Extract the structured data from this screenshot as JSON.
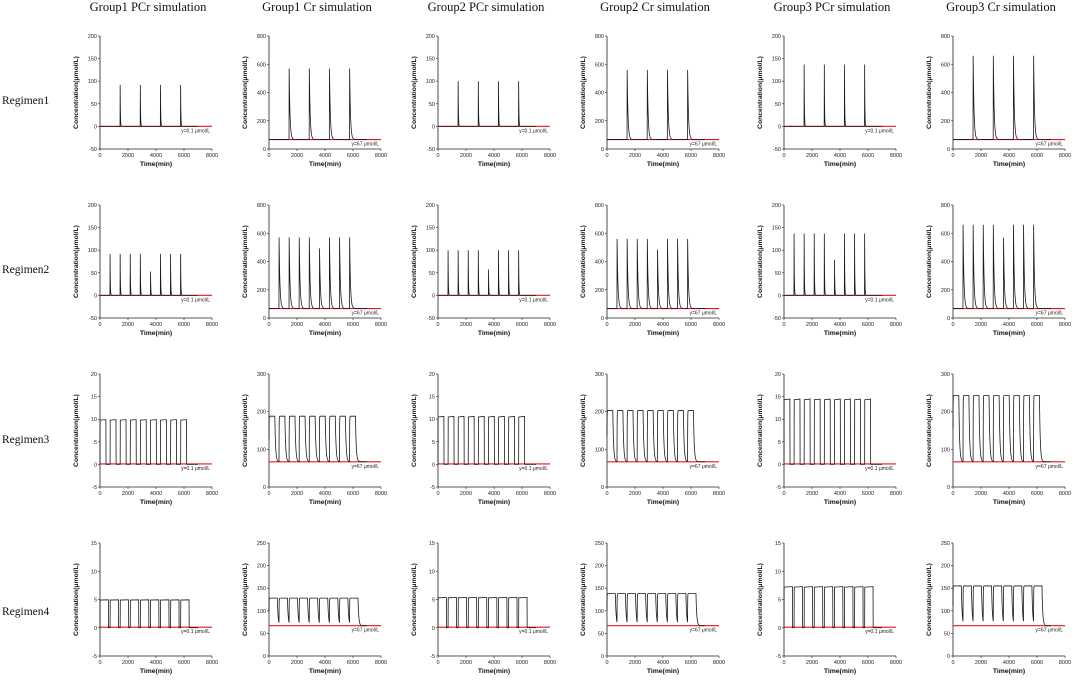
{
  "column_titles": [
    "Group1 PCr simulation",
    "Group1 Cr simulation",
    "Group2 PCr simulation",
    "Group2 Cr simulation",
    "Group3 PCr simulation",
    "Group3 Cr simulation"
  ],
  "row_labels": [
    "Regimen1",
    "Regimen2",
    "Regimen3",
    "Regimen4"
  ],
  "x_axis": {
    "label": "Time(min)",
    "ticks": [
      0,
      2000,
      4000,
      6000,
      8000
    ],
    "tick_labels": [
      "0",
      "2000",
      "4000",
      "6000",
      "8000"
    ],
    "xlim": [
      0,
      8000
    ]
  },
  "y_axis_label": "Concentration(μmol/L)",
  "reference_labels": {
    "PCr": "y=0.1 μmol/L",
    "Cr": "y=67 μmol/L"
  },
  "colors": {
    "curve": "#1a1a1a",
    "reference": "#e8141b"
  },
  "chart_data": [
    {
      "type": "line",
      "row": "Regimen1",
      "column": "Group1 PCr simulation",
      "ylim": [
        -50,
        200
      ],
      "yticks": [
        -50,
        0,
        50,
        100,
        150,
        200
      ],
      "reference": 0.1,
      "baseline": 0,
      "peak": 92,
      "pattern": "spike",
      "dose_times": [
        1440,
        2880,
        4320,
        5760
      ]
    },
    {
      "type": "line",
      "row": "Regimen1",
      "column": "Group1 Cr simulation",
      "ylim": [
        0,
        800
      ],
      "yticks": [
        0,
        200,
        400,
        600,
        800
      ],
      "reference": 67,
      "baseline": 67,
      "peak": 570,
      "pattern": "spike",
      "dose_times": [
        1440,
        2880,
        4320,
        5760
      ]
    },
    {
      "type": "line",
      "row": "Regimen1",
      "column": "Group2 PCr simulation",
      "ylim": [
        -50,
        200
      ],
      "yticks": [
        -50,
        0,
        50,
        100,
        150,
        200
      ],
      "reference": 0.1,
      "baseline": 0,
      "peak": 100,
      "pattern": "spike",
      "dose_times": [
        1440,
        2880,
        4320,
        5760
      ]
    },
    {
      "type": "line",
      "row": "Regimen1",
      "column": "Group2 Cr simulation",
      "ylim": [
        0,
        800
      ],
      "yticks": [
        0,
        200,
        400,
        600,
        800
      ],
      "reference": 67,
      "baseline": 67,
      "peak": 560,
      "pattern": "spike",
      "dose_times": [
        1440,
        2880,
        4320,
        5760
      ]
    },
    {
      "type": "line",
      "row": "Regimen1",
      "column": "Group3 PCr simulation",
      "ylim": [
        -50,
        200
      ],
      "yticks": [
        -50,
        0,
        50,
        100,
        150,
        200
      ],
      "reference": 0.1,
      "baseline": 0,
      "peak": 137,
      "pattern": "spike",
      "dose_times": [
        1440,
        2880,
        4320,
        5760
      ]
    },
    {
      "type": "line",
      "row": "Regimen1",
      "column": "Group3 Cr simulation",
      "ylim": [
        0,
        800
      ],
      "yticks": [
        0,
        200,
        400,
        600,
        800
      ],
      "reference": 67,
      "baseline": 67,
      "peak": 660,
      "pattern": "spike",
      "dose_times": [
        1440,
        2880,
        4320,
        5760
      ]
    },
    {
      "type": "line",
      "row": "Regimen2",
      "column": "Group1 PCr simulation",
      "ylim": [
        -50,
        200
      ],
      "yticks": [
        -50,
        0,
        50,
        100,
        150,
        200
      ],
      "reference": 0.1,
      "baseline": 0,
      "peak": 92,
      "pattern": "spike",
      "dose_times": [
        720,
        1440,
        2160,
        2880,
        3600,
        4320,
        5040,
        5760
      ]
    },
    {
      "type": "line",
      "row": "Regimen2",
      "column": "Group1 Cr simulation",
      "ylim": [
        0,
        800
      ],
      "yticks": [
        0,
        200,
        400,
        600,
        800
      ],
      "reference": 67,
      "baseline": 67,
      "peak": 570,
      "pattern": "spike",
      "dose_times": [
        720,
        1440,
        2160,
        2880,
        3600,
        4320,
        5040,
        5760
      ]
    },
    {
      "type": "line",
      "row": "Regimen2",
      "column": "Group2 PCr simulation",
      "ylim": [
        -50,
        200
      ],
      "yticks": [
        -50,
        0,
        50,
        100,
        150,
        200
      ],
      "reference": 0.1,
      "baseline": 0,
      "peak": 100,
      "pattern": "spike",
      "dose_times": [
        720,
        1440,
        2160,
        2880,
        3600,
        4320,
        5040,
        5760
      ]
    },
    {
      "type": "line",
      "row": "Regimen2",
      "column": "Group2 Cr simulation",
      "ylim": [
        0,
        800
      ],
      "yticks": [
        0,
        200,
        400,
        600,
        800
      ],
      "reference": 67,
      "baseline": 67,
      "peak": 560,
      "pattern": "spike",
      "dose_times": [
        720,
        1440,
        2160,
        2880,
        3600,
        4320,
        5040,
        5760
      ]
    },
    {
      "type": "line",
      "row": "Regimen2",
      "column": "Group3 PCr simulation",
      "ylim": [
        -50,
        200
      ],
      "yticks": [
        -50,
        0,
        50,
        100,
        150,
        200
      ],
      "reference": 0.1,
      "baseline": 0,
      "peak": 137,
      "pattern": "spike",
      "dose_times": [
        720,
        1440,
        2160,
        2880,
        3600,
        4320,
        5040,
        5760
      ]
    },
    {
      "type": "line",
      "row": "Regimen2",
      "column": "Group3 Cr simulation",
      "ylim": [
        0,
        800
      ],
      "yticks": [
        0,
        200,
        400,
        600,
        800
      ],
      "reference": 67,
      "baseline": 67,
      "peak": 660,
      "pattern": "spike",
      "dose_times": [
        720,
        1440,
        2160,
        2880,
        3600,
        4320,
        5040,
        5760
      ]
    },
    {
      "type": "line",
      "row": "Regimen3",
      "column": "Group1 PCr simulation",
      "ylim": [
        -5,
        20
      ],
      "yticks": [
        -5,
        0,
        5,
        10,
        15,
        20
      ],
      "reference": 0.1,
      "baseline": 0,
      "peak": 9.8,
      "pattern": "square",
      "dose_times": [
        0,
        720,
        1440,
        2160,
        2880,
        3600,
        4320,
        5040,
        5760
      ],
      "pulse_duration": 420
    },
    {
      "type": "line",
      "row": "Regimen3",
      "column": "Group1 Cr simulation",
      "ylim": [
        0,
        300
      ],
      "yticks": [
        0,
        100,
        200,
        300
      ],
      "reference": 67,
      "baseline": 67,
      "peak": 188,
      "pattern": "wave",
      "dose_times": [
        0,
        720,
        1440,
        2160,
        2880,
        3600,
        4320,
        5040,
        5760
      ],
      "pulse_duration": 420
    },
    {
      "type": "line",
      "row": "Regimen3",
      "column": "Group2 PCr simulation",
      "ylim": [
        -5,
        20
      ],
      "yticks": [
        -5,
        0,
        5,
        10,
        15,
        20
      ],
      "reference": 0.1,
      "baseline": 0,
      "peak": 10.5,
      "pattern": "square",
      "dose_times": [
        0,
        720,
        1440,
        2160,
        2880,
        3600,
        4320,
        5040,
        5760
      ],
      "pulse_duration": 420
    },
    {
      "type": "line",
      "row": "Regimen3",
      "column": "Group2 Cr simulation",
      "ylim": [
        0,
        300
      ],
      "yticks": [
        0,
        100,
        200,
        300
      ],
      "reference": 67,
      "baseline": 67,
      "peak": 203,
      "pattern": "wave",
      "dose_times": [
        0,
        720,
        1440,
        2160,
        2880,
        3600,
        4320,
        5040,
        5760
      ],
      "pulse_duration": 420
    },
    {
      "type": "line",
      "row": "Regimen3",
      "column": "Group3 PCr simulation",
      "ylim": [
        -5,
        20
      ],
      "yticks": [
        -5,
        0,
        5,
        10,
        15,
        20
      ],
      "reference": 0.1,
      "baseline": 0,
      "peak": 14.3,
      "pattern": "square",
      "dose_times": [
        0,
        720,
        1440,
        2160,
        2880,
        3600,
        4320,
        5040,
        5760
      ],
      "pulse_duration": 420
    },
    {
      "type": "line",
      "row": "Regimen3",
      "column": "Group3 Cr simulation",
      "ylim": [
        0,
        300
      ],
      "yticks": [
        0,
        100,
        200,
        300
      ],
      "reference": 67,
      "baseline": 67,
      "peak": 243,
      "pattern": "wave",
      "dose_times": [
        0,
        720,
        1440,
        2160,
        2880,
        3600,
        4320,
        5040,
        5760
      ],
      "pulse_duration": 420
    },
    {
      "type": "line",
      "row": "Regimen4",
      "column": "Group1 PCr simulation",
      "ylim": [
        -5,
        15
      ],
      "yticks": [
        -5,
        0,
        5,
        10,
        15
      ],
      "reference": 0.1,
      "baseline": 0,
      "peak": 4.9,
      "pattern": "square",
      "dose_times": [
        0,
        720,
        1440,
        2160,
        2880,
        3600,
        4320,
        5040,
        5760
      ],
      "pulse_duration": 600
    },
    {
      "type": "line",
      "row": "Regimen4",
      "column": "Group1 Cr simulation",
      "ylim": [
        0,
        250
      ],
      "yticks": [
        0,
        50,
        100,
        150,
        200,
        250
      ],
      "reference": 67,
      "baseline": 67,
      "peak": 128,
      "pattern": "wave",
      "dose_times": [
        0,
        720,
        1440,
        2160,
        2880,
        3600,
        4320,
        5040,
        5760
      ],
      "pulse_duration": 600
    },
    {
      "type": "line",
      "row": "Regimen4",
      "column": "Group2 PCr simulation",
      "ylim": [
        -5,
        15
      ],
      "yticks": [
        -5,
        0,
        5,
        10,
        15
      ],
      "reference": 0.1,
      "baseline": 0,
      "peak": 5.3,
      "pattern": "square",
      "dose_times": [
        0,
        720,
        1440,
        2160,
        2880,
        3600,
        4320,
        5040,
        5760
      ],
      "pulse_duration": 600
    },
    {
      "type": "line",
      "row": "Regimen4",
      "column": "Group2 Cr simulation",
      "ylim": [
        0,
        250
      ],
      "yticks": [
        0,
        50,
        100,
        150,
        200,
        250
      ],
      "reference": 67,
      "baseline": 67,
      "peak": 138,
      "pattern": "wave",
      "dose_times": [
        0,
        720,
        1440,
        2160,
        2880,
        3600,
        4320,
        5040,
        5760
      ],
      "pulse_duration": 600
    },
    {
      "type": "line",
      "row": "Regimen4",
      "column": "Group3 PCr simulation",
      "ylim": [
        -5,
        15
      ],
      "yticks": [
        -5,
        0,
        5,
        10,
        15
      ],
      "reference": 0.1,
      "baseline": 0,
      "peak": 7.2,
      "pattern": "square",
      "dose_times": [
        0,
        720,
        1440,
        2160,
        2880,
        3600,
        4320,
        5040,
        5760
      ],
      "pulse_duration": 600
    },
    {
      "type": "line",
      "row": "Regimen4",
      "column": "Group3 Cr simulation",
      "ylim": [
        0,
        250
      ],
      "yticks": [
        0,
        50,
        100,
        150,
        200,
        250
      ],
      "reference": 67,
      "baseline": 67,
      "peak": 155,
      "pattern": "wave",
      "dose_times": [
        0,
        720,
        1440,
        2160,
        2880,
        3600,
        4320,
        5040,
        5760
      ],
      "pulse_duration": 600
    }
  ]
}
